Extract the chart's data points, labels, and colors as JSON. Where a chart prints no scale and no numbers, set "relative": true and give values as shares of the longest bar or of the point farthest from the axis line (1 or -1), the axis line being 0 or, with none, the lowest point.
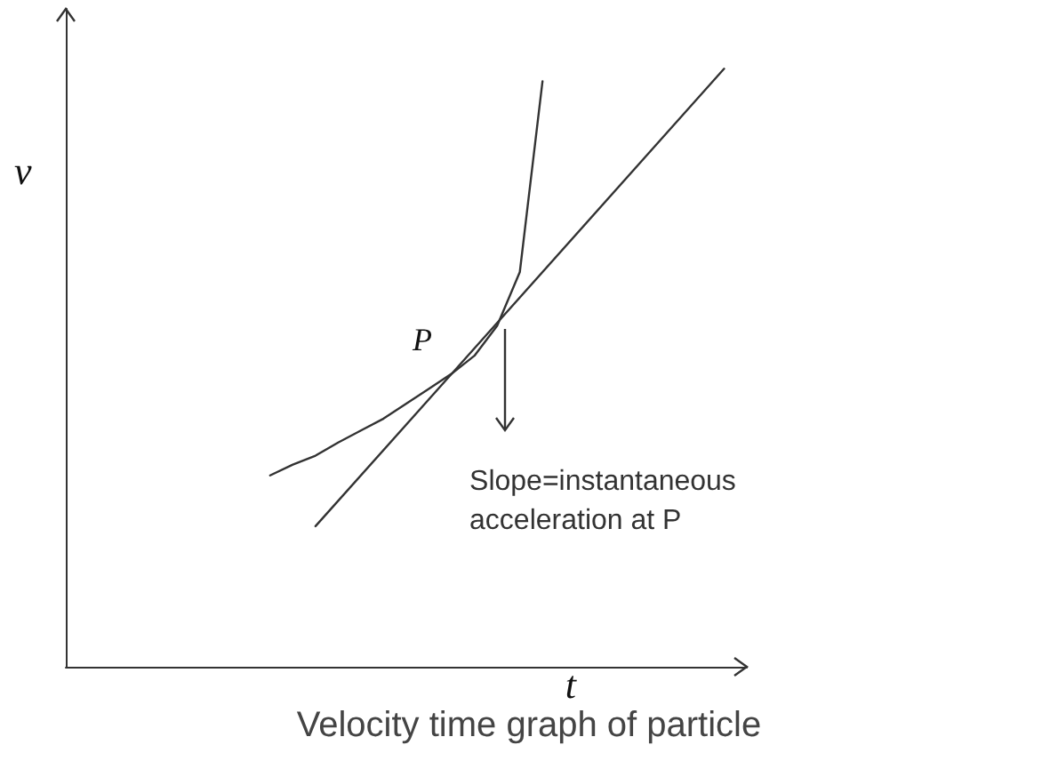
{
  "chart_data": {
    "type": "line",
    "relative": true,
    "title": "Velocity time graph of particle",
    "xlabel": "t",
    "ylabel": "v",
    "marker": "none",
    "line_style": "solid",
    "categories": [
      null,
      null,
      null,
      null,
      null,
      null,
      null,
      null,
      null,
      null,
      null,
      null,
      null,
      null,
      null,
      null,
      null,
      null,
      null,
      null,
      null,
      null,
      null,
      null,
      null,
      null,
      null,
      null,
      null,
      null,
      null
    ],
    "series": [
      {
        "color": "#333333",
        "values": [
          null,
          null,
          null,
          null,
          null,
          null,
          null,
          null,
          null,
          0.32,
          0.338,
          0.353,
          0.375,
          0.395,
          0.415,
          0.44,
          0.465,
          0.49,
          0.52,
          0.57,
          0.66,
          0.979,
          null,
          null,
          null,
          null,
          null,
          null,
          null,
          null,
          null
        ]
      },
      {
        "color": "#333333",
        "values": [
          null,
          null,
          null,
          null,
          null,
          null,
          null,
          null,
          null,
          null,
          null,
          0.235,
          null,
          null,
          null,
          null,
          null,
          null,
          null,
          null,
          null,
          null,
          null,
          null,
          null,
          null,
          null,
          null,
          null,
          1,
          null
        ]
      }
    ],
    "annotations": [
      "P",
      "Slope=instantaneous\nacceleration at P"
    ]
  }
}
